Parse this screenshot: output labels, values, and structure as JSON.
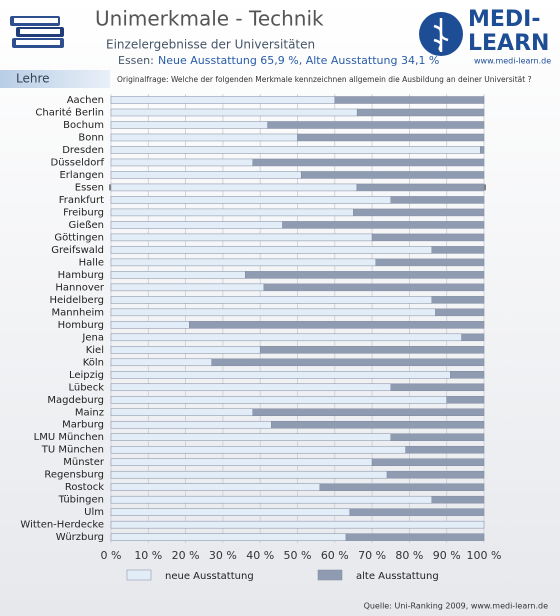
{
  "header": {
    "title": "Unimerkmale - Technik",
    "subtitle": "Einzelergebnisse der Universitäten",
    "highlight_label": "Essen:",
    "highlight_text": "Neue Ausstattung 65,9 %, Alte Ausstattung 34,1 %",
    "logo_top": "MEDI-",
    "logo_bottom": "LEARN",
    "logo_url": "www.medi-learn.de"
  },
  "section": "Lehre",
  "question": "Originalfrage: Welche der folgenden Merkmale kennzeichnen allgemein die Ausbildung an deiner Universität ?",
  "source": "Quelle: Uni-Ranking 2009, www.medi-learn.de",
  "chart_data": {
    "type": "bar",
    "orientation": "horizontal",
    "stacked": true,
    "grid": true,
    "categories": [
      "Aachen",
      "Charité Berlin",
      "Bochum",
      "Bonn",
      "Dresden",
      "Düsseldorf",
      "Erlangen",
      "Essen",
      "Frankfurt",
      "Freiburg",
      "Gießen",
      "Göttingen",
      "Greifswald",
      "Halle",
      "Hamburg",
      "Hannover",
      "Heidelberg",
      "Mannheim",
      "Homburg",
      "Jena",
      "Kiel",
      "Köln",
      "Leipzig",
      "Lübeck",
      "Magdeburg",
      "Mainz",
      "Marburg",
      "LMU München",
      "TU München",
      "Münster",
      "Regensburg",
      "Rostock",
      "Tübingen",
      "Ulm",
      "Witten-Herdecke",
      "Würzburg"
    ],
    "highlight": "Essen",
    "series": [
      {
        "name": "neue Ausstattung",
        "color": "#e3edf8",
        "values": [
          60,
          66,
          42,
          50,
          99,
          38,
          51,
          65.9,
          75,
          65,
          46,
          70,
          86,
          71,
          36,
          41,
          86,
          87,
          21,
          94,
          40,
          27,
          91,
          75,
          90,
          38,
          43,
          75,
          79,
          70,
          74,
          56,
          86,
          64,
          100,
          63
        ]
      },
      {
        "name": "alte Ausstattung",
        "color": "#8f9bb1",
        "values": [
          40,
          34,
          58,
          50,
          1,
          62,
          49,
          34.1,
          25,
          35,
          54,
          30,
          14,
          29,
          64,
          59,
          14,
          13,
          79,
          6,
          60,
          73,
          9,
          25,
          10,
          62,
          57,
          25,
          21,
          30,
          26,
          44,
          14,
          36,
          0,
          37
        ]
      }
    ],
    "xlim": [
      0,
      100
    ],
    "xticks": [
      {
        "value": 0,
        "label": "0 %"
      },
      {
        "value": 10,
        "label": "10 %"
      },
      {
        "value": 20,
        "label": "20 %"
      },
      {
        "value": 30,
        "label": "30 %"
      },
      {
        "value": 40,
        "label": "40 %"
      },
      {
        "value": 50,
        "label": "50 %"
      },
      {
        "value": 60,
        "label": "60 %"
      },
      {
        "value": 70,
        "label": "70 %"
      },
      {
        "value": 80,
        "label": "80 %"
      },
      {
        "value": 90,
        "label": "90 %"
      },
      {
        "value": 100,
        "label": "100 %"
      }
    ]
  }
}
